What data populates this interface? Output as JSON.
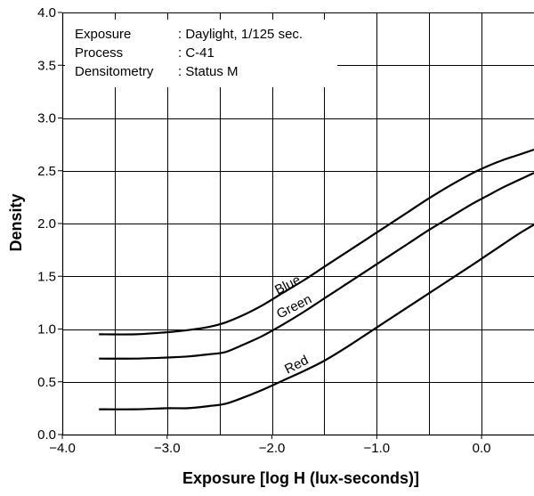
{
  "chart_data": {
    "type": "line",
    "xlabel": "Exposure [log H (lux-seconds)]",
    "ylabel": "Density",
    "xlim": [
      -4.0,
      0.5
    ],
    "ylim": [
      0.0,
      4.0
    ],
    "x_ticks": [
      -4.0,
      -3.0,
      -2.0,
      -1.0,
      0.0
    ],
    "x_tick_labels": [
      "−4.0",
      "−3.0",
      "−2.0",
      "−1.0",
      "0.0"
    ],
    "y_ticks": [
      0.0,
      0.5,
      1.0,
      1.5,
      2.0,
      2.5,
      3.0,
      3.5,
      4.0
    ],
    "y_tick_labels": [
      "0.0",
      "0.5",
      "1.0",
      "1.5",
      "2.0",
      "2.5",
      "3.0",
      "3.5",
      "4.0"
    ],
    "grid": true,
    "info_box": {
      "rows": [
        {
          "key": "Exposure",
          "value": ": Daylight, 1/125 sec."
        },
        {
          "key": "Process",
          "value": ": C-41"
        },
        {
          "key": "Densitometry",
          "value": ": Status M"
        }
      ]
    },
    "series": [
      {
        "name": "Blue",
        "color": "#000000",
        "x": [
          -3.65,
          -3.3,
          -3.0,
          -2.8,
          -2.6,
          -2.45,
          -2.3,
          -2.1,
          -1.9,
          -1.7,
          -1.5,
          -1.3,
          -1.1,
          -0.9,
          -0.7,
          -0.5,
          -0.3,
          -0.1,
          0.05,
          0.2,
          0.35,
          0.5
        ],
        "y": [
          0.95,
          0.95,
          0.97,
          0.99,
          1.02,
          1.06,
          1.12,
          1.22,
          1.34,
          1.46,
          1.59,
          1.72,
          1.85,
          1.98,
          2.11,
          2.24,
          2.36,
          2.47,
          2.54,
          2.6,
          2.65,
          2.7
        ]
      },
      {
        "name": "Green",
        "color": "#000000",
        "x": [
          -3.65,
          -3.3,
          -3.0,
          -2.8,
          -2.6,
          -2.45,
          -2.3,
          -2.1,
          -1.9,
          -1.7,
          -1.5,
          -1.3,
          -1.1,
          -0.9,
          -0.7,
          -0.5,
          -0.3,
          -0.1,
          0.05,
          0.2,
          0.35,
          0.5
        ],
        "y": [
          0.72,
          0.72,
          0.73,
          0.74,
          0.76,
          0.78,
          0.84,
          0.93,
          1.04,
          1.16,
          1.29,
          1.42,
          1.55,
          1.68,
          1.81,
          1.94,
          2.06,
          2.18,
          2.26,
          2.34,
          2.41,
          2.48
        ]
      },
      {
        "name": "Red",
        "color": "#000000",
        "x": [
          -3.65,
          -3.3,
          -3.0,
          -2.8,
          -2.6,
          -2.45,
          -2.3,
          -2.1,
          -1.9,
          -1.7,
          -1.5,
          -1.3,
          -1.1,
          -0.9,
          -0.7,
          -0.5,
          -0.3,
          -0.1,
          0.05,
          0.2,
          0.35,
          0.5
        ],
        "y": [
          0.24,
          0.24,
          0.25,
          0.25,
          0.27,
          0.29,
          0.34,
          0.42,
          0.51,
          0.6,
          0.7,
          0.82,
          0.95,
          1.08,
          1.21,
          1.34,
          1.47,
          1.6,
          1.7,
          1.8,
          1.9,
          1.99
        ]
      }
    ]
  }
}
